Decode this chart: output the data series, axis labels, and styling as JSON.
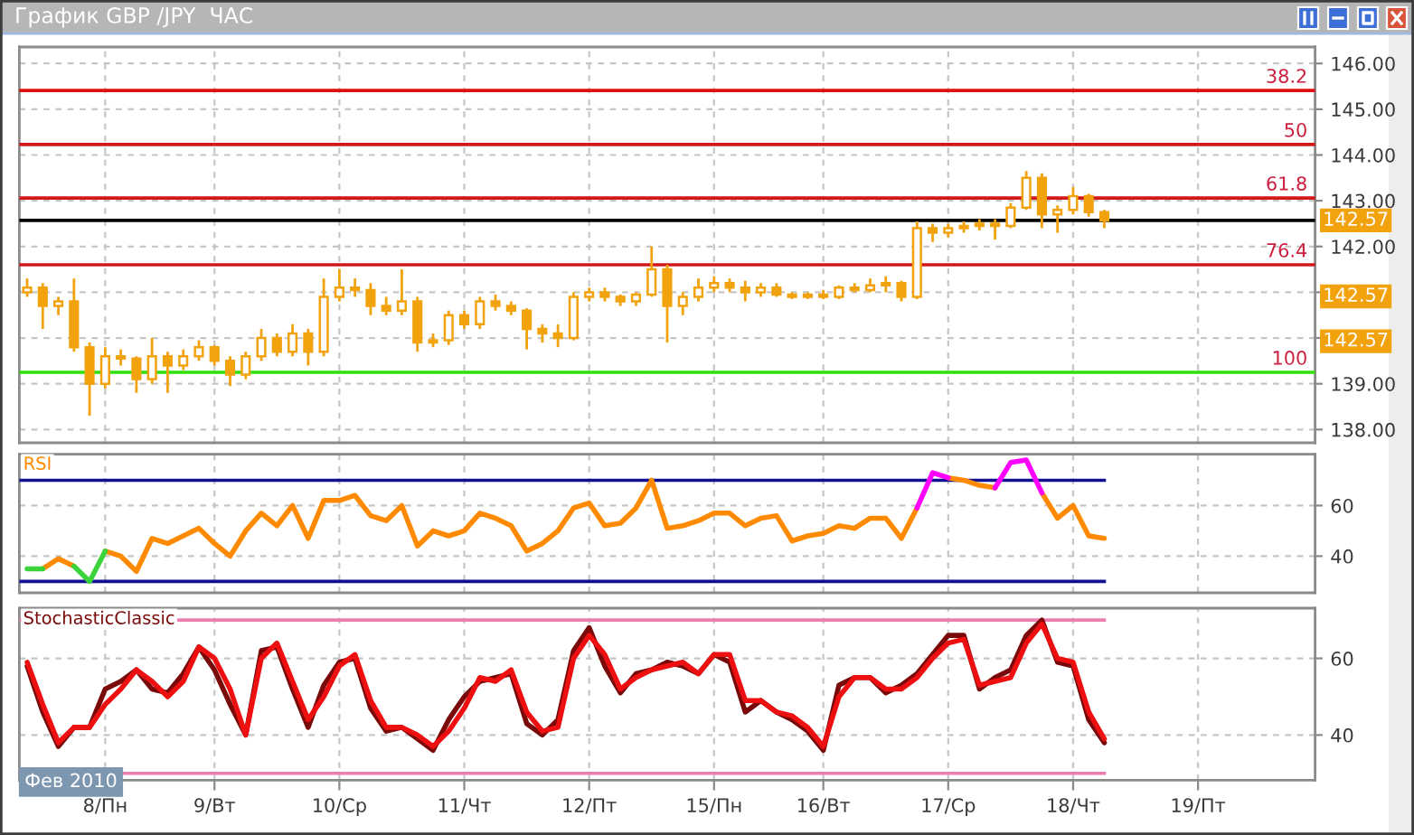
{
  "chart_data": [
    {
      "type": "candlestick",
      "title": "График GBP /JPY  ЧАС",
      "color": "#f2a20c",
      "categories": [
        null,
        null,
        null,
        null,
        null,
        null,
        null,
        null,
        null,
        null,
        null,
        null,
        null,
        null,
        null,
        null,
        null,
        null,
        null,
        null,
        null,
        null,
        null,
        null,
        null,
        null,
        null,
        null,
        null,
        null,
        null,
        null,
        null,
        null,
        null,
        null,
        null,
        null,
        null,
        null,
        null,
        null,
        null,
        null,
        null,
        null,
        null,
        null,
        null,
        null,
        null,
        null,
        null,
        null,
        null,
        null,
        null,
        null,
        null,
        null,
        null,
        null,
        null,
        null,
        null,
        null,
        null,
        null,
        null,
        null,
        null,
        null,
        null,
        null,
        null,
        null,
        null,
        null,
        null,
        null,
        null,
        null,
        null
      ],
      "ohlc": [
        [
          141.0,
          141.3,
          140.9,
          141.1
        ],
        [
          141.1,
          141.2,
          140.2,
          140.7
        ],
        [
          140.7,
          140.9,
          140.5,
          140.8
        ],
        [
          140.8,
          141.3,
          139.7,
          139.8
        ],
        [
          139.8,
          139.9,
          138.3,
          139.0
        ],
        [
          139.0,
          139.8,
          138.9,
          139.6
        ],
        [
          139.6,
          139.75,
          139.4,
          139.55
        ],
        [
          139.55,
          139.6,
          138.8,
          139.1
        ],
        [
          139.1,
          140.0,
          139.0,
          139.6
        ],
        [
          139.6,
          139.7,
          138.8,
          139.4
        ],
        [
          139.4,
          139.75,
          139.3,
          139.6
        ],
        [
          139.6,
          139.95,
          139.5,
          139.8
        ],
        [
          139.8,
          139.85,
          139.4,
          139.5
        ],
        [
          139.5,
          139.6,
          138.95,
          139.2
        ],
        [
          139.2,
          139.7,
          139.1,
          139.6
        ],
        [
          139.6,
          140.2,
          139.5,
          140.0
        ],
        [
          140.0,
          140.1,
          139.6,
          139.7
        ],
        [
          139.7,
          140.3,
          139.6,
          140.1
        ],
        [
          140.1,
          140.2,
          139.4,
          139.7
        ],
        [
          139.7,
          141.3,
          139.6,
          140.9
        ],
        [
          140.9,
          141.5,
          140.8,
          141.1
        ],
        [
          141.1,
          141.3,
          140.9,
          141.05
        ],
        [
          141.05,
          141.2,
          140.5,
          140.7
        ],
        [
          140.7,
          140.9,
          140.5,
          140.6
        ],
        [
          140.6,
          141.5,
          140.5,
          140.8
        ],
        [
          140.8,
          140.9,
          139.7,
          139.9
        ],
        [
          139.9,
          140.1,
          139.8,
          139.95
        ],
        [
          139.95,
          140.6,
          139.85,
          140.5
        ],
        [
          140.5,
          140.6,
          140.2,
          140.3
        ],
        [
          140.3,
          140.9,
          140.2,
          140.8
        ],
        [
          140.8,
          140.95,
          140.6,
          140.7
        ],
        [
          140.7,
          140.8,
          140.5,
          140.6
        ],
        [
          140.6,
          140.65,
          139.75,
          140.2
        ],
        [
          140.2,
          140.3,
          139.9,
          140.1
        ],
        [
          140.1,
          140.3,
          139.8,
          140.0
        ],
        [
          140.0,
          141.0,
          139.95,
          140.9
        ],
        [
          140.9,
          141.1,
          140.8,
          141.0
        ],
        [
          141.0,
          141.1,
          140.8,
          140.9
        ],
        [
          140.9,
          140.95,
          140.7,
          140.8
        ],
        [
          140.8,
          141.0,
          140.7,
          140.95
        ],
        [
          140.95,
          142.0,
          140.9,
          141.5
        ],
        [
          141.5,
          141.6,
          139.9,
          140.7
        ],
        [
          140.7,
          141.0,
          140.5,
          140.9
        ],
        [
          140.9,
          141.3,
          140.8,
          141.1
        ],
        [
          141.1,
          141.35,
          141.0,
          141.2
        ],
        [
          141.2,
          141.3,
          141.0,
          141.1
        ],
        [
          141.1,
          141.25,
          140.8,
          141.0
        ],
        [
          141.0,
          141.2,
          140.9,
          141.1
        ],
        [
          141.1,
          141.2,
          140.9,
          140.95
        ],
        [
          140.95,
          141.0,
          140.85,
          140.9
        ],
        [
          140.9,
          141.0,
          140.85,
          140.95
        ],
        [
          140.95,
          141.05,
          140.85,
          140.9
        ],
        [
          140.9,
          141.15,
          140.85,
          141.1
        ],
        [
          141.1,
          141.2,
          141.0,
          141.05
        ],
        [
          141.05,
          141.3,
          141.0,
          141.15
        ],
        [
          141.15,
          141.35,
          141.0,
          141.2
        ],
        [
          141.2,
          141.25,
          140.8,
          140.9
        ],
        [
          140.9,
          142.55,
          140.85,
          142.4
        ],
        [
          142.4,
          142.5,
          142.1,
          142.3
        ],
        [
          142.3,
          142.5,
          142.2,
          142.4
        ],
        [
          142.4,
          142.55,
          142.3,
          142.45
        ],
        [
          142.45,
          142.6,
          142.35,
          142.5
        ],
        [
          142.5,
          142.6,
          142.15,
          142.45
        ],
        [
          142.45,
          142.95,
          142.4,
          142.85
        ],
        [
          142.85,
          143.65,
          142.8,
          143.5
        ],
        [
          143.5,
          143.6,
          142.4,
          142.7
        ],
        [
          142.7,
          142.9,
          142.3,
          142.8
        ],
        [
          142.8,
          143.3,
          142.7,
          143.1
        ],
        [
          143.1,
          143.15,
          142.65,
          142.75
        ],
        [
          142.75,
          142.8,
          142.4,
          142.57
        ],
        null,
        null,
        null,
        null,
        null,
        null,
        null,
        null,
        null,
        null,
        null,
        null,
        null
      ],
      "ylim": [
        137.71,
        146.36
      ],
      "yticks": [
        {
          "value": 138,
          "label": "138.00"
        },
        {
          "value": 139,
          "label": "139.00"
        },
        {
          "value": 140,
          "label": null
        },
        {
          "value": 141,
          "label": null
        },
        {
          "value": 142,
          "label": "142.00"
        },
        {
          "value": 143,
          "label": "143.00"
        },
        {
          "value": 144,
          "label": "144.00"
        },
        {
          "value": 145,
          "label": "145.00"
        },
        {
          "value": 146,
          "label": "146.00"
        }
      ],
      "tick_labels": "y",
      "grid": true,
      "ref_lines": [
        {
          "axis": "y",
          "value": 145.41,
          "color": "#e01010"
        },
        {
          "axis": "y",
          "value": 144.23,
          "color": "#d01818"
        },
        {
          "axis": "y",
          "value": 143.06,
          "color": "#d01818"
        },
        {
          "axis": "y",
          "value": 141.6,
          "color": "#d01818"
        },
        {
          "axis": "y",
          "value": 139.25,
          "color": "#2ee00a"
        },
        {
          "axis": "y",
          "value": 142.57,
          "label": "142.57",
          "color": "#000000"
        }
      ],
      "annotations": [
        {
          "text": "38.2",
          "y": 145.41
        },
        {
          "text": "50",
          "y": 144.23
        },
        {
          "text": "61.8",
          "y": 143.06
        },
        {
          "text": "76.4",
          "y": 141.6
        },
        {
          "text": "100",
          "y": 139.25
        },
        {
          "text": "142.57",
          "y": 140.91
        },
        {
          "text": "142.57",
          "y": 139.93
        }
      ]
    },
    {
      "type": "line",
      "title": "RSI",
      "categories": [
        null,
        null,
        null,
        null,
        null,
        null,
        null,
        null,
        null,
        null,
        null,
        null,
        null,
        null,
        null,
        null,
        null,
        null,
        null,
        null,
        null,
        null,
        null,
        null,
        null,
        null,
        null,
        null,
        null,
        null,
        null,
        null,
        null,
        null,
        null,
        null,
        null,
        null,
        null,
        null,
        null,
        null,
        null,
        null,
        null,
        null,
        null,
        null,
        null,
        null,
        null,
        null,
        null,
        null,
        null,
        null,
        null,
        null,
        null,
        null,
        null,
        null,
        null,
        null,
        null,
        null,
        null,
        null,
        null,
        null,
        null,
        null,
        null,
        null,
        null,
        null,
        null,
        null,
        null,
        null,
        null,
        null,
        null
      ],
      "series": [
        {
          "color": "#ff8a00",
          "values": [
            null,
            35,
            39,
            36,
            null,
            42,
            40,
            34,
            47,
            45,
            48,
            51,
            45,
            40,
            50,
            57,
            52,
            60,
            47,
            62,
            62,
            64,
            56,
            54,
            60,
            44,
            50,
            48,
            50,
            57,
            55,
            52,
            42,
            45,
            50,
            59,
            61,
            52,
            53,
            59,
            70,
            51,
            52,
            54,
            57,
            57,
            52,
            55,
            56,
            46,
            48,
            49,
            52,
            51,
            55,
            55,
            47,
            59,
            null,
            71,
            70,
            68,
            67,
            null,
            null,
            65,
            55,
            60,
            48,
            47,
            null,
            null,
            null,
            null,
            null,
            null,
            null,
            null,
            null,
            null,
            null,
            null,
            null
          ]
        },
        {
          "color": "#3ad43a",
          "values": [
            35,
            35,
            null,
            36,
            30,
            42,
            null,
            null,
            null,
            null,
            null,
            null,
            null,
            null,
            null,
            null,
            null,
            null,
            null,
            null,
            null,
            null,
            null,
            null,
            null,
            null,
            null,
            null,
            null,
            null,
            null,
            null,
            null,
            null,
            null,
            null,
            null,
            null,
            null,
            null,
            null,
            null,
            null,
            null,
            null,
            null,
            null,
            null,
            null,
            null,
            null,
            null,
            null,
            null,
            null,
            null,
            null,
            null,
            null,
            null,
            null,
            null,
            null,
            null,
            null,
            null,
            null,
            null,
            null,
            null,
            null,
            null,
            null,
            null,
            null,
            null,
            null,
            null,
            null,
            null,
            null,
            null,
            null
          ]
        },
        {
          "color": "#ff00ff",
          "values": [
            null,
            null,
            null,
            null,
            null,
            null,
            null,
            null,
            null,
            null,
            null,
            null,
            null,
            null,
            null,
            null,
            null,
            null,
            null,
            null,
            null,
            null,
            null,
            null,
            null,
            null,
            null,
            null,
            null,
            null,
            null,
            null,
            null,
            null,
            null,
            null,
            null,
            null,
            null,
            null,
            null,
            null,
            null,
            null,
            null,
            null,
            null,
            null,
            null,
            null,
            null,
            null,
            null,
            null,
            null,
            null,
            null,
            59,
            73,
            71,
            null,
            null,
            67,
            77,
            78,
            65,
            null,
            null,
            null,
            null,
            null,
            null,
            null,
            null,
            null,
            null,
            null,
            null,
            null,
            null,
            null,
            null,
            null
          ]
        }
      ],
      "ylim": [
        25.5,
        80.3
      ],
      "yticks": [
        40,
        60
      ],
      "tick_labels": "y",
      "grid": true,
      "ref_lines": [
        {
          "axis": "y",
          "value": 70,
          "color": "#101090"
        },
        {
          "axis": "y",
          "value": 30,
          "color": "#101090"
        }
      ]
    },
    {
      "type": "line",
      "title": "StochasticClassic",
      "categories": [
        null,
        null,
        null,
        null,
        null,
        "8/Пн",
        null,
        null,
        null,
        null,
        null,
        null,
        "9/Вт",
        null,
        null,
        null,
        null,
        null,
        null,
        null,
        "10/Ср",
        null,
        null,
        null,
        null,
        null,
        null,
        null,
        "11/Чт",
        null,
        null,
        null,
        null,
        null,
        null,
        null,
        "12/Пт",
        null,
        null,
        null,
        null,
        null,
        null,
        null,
        "15/Пн",
        null,
        null,
        null,
        null,
        null,
        null,
        "16/Вт",
        null,
        null,
        null,
        null,
        null,
        null,
        null,
        "17/Ср",
        null,
        null,
        null,
        null,
        null,
        null,
        null,
        "18/Чт",
        null,
        null,
        null,
        null,
        null,
        null,
        null,
        "19/Пт",
        null,
        null,
        null,
        null,
        null,
        null,
        null
      ],
      "series": [
        {
          "color": "#7a0a0a",
          "values": [
            58,
            46,
            37,
            42,
            42,
            52,
            54,
            57,
            52,
            51,
            56,
            63,
            57,
            48,
            40,
            62,
            63,
            52,
            42,
            53,
            59,
            60,
            47,
            41,
            42,
            39,
            36,
            44,
            50,
            54,
            55,
            56,
            43,
            40,
            44,
            62,
            68,
            58,
            51,
            56,
            57,
            59,
            58,
            56,
            61,
            59,
            46,
            49,
            46,
            44,
            41,
            36,
            53,
            55,
            55,
            51,
            53,
            56,
            61,
            66,
            66,
            52,
            55,
            57,
            66,
            70,
            59,
            58,
            44,
            38,
            null,
            null,
            null,
            null,
            null,
            null,
            null,
            null,
            null,
            null,
            null,
            null,
            null
          ]
        },
        {
          "color": "#ee1010",
          "values": [
            59,
            48,
            38,
            42,
            42,
            48,
            52,
            57,
            54,
            50,
            54,
            63,
            60,
            52,
            40,
            60,
            64,
            54,
            44,
            50,
            58,
            61,
            49,
            42,
            42,
            40,
            37,
            41,
            47,
            55,
            54,
            57,
            46,
            41,
            42,
            60,
            66,
            61,
            52,
            55,
            57,
            58,
            59,
            56,
            61,
            61,
            49,
            49,
            46,
            45,
            42,
            37,
            50,
            55,
            55,
            52,
            52,
            55,
            60,
            64,
            65,
            53,
            54,
            55,
            64,
            69,
            60,
            59,
            46,
            39,
            null,
            null,
            null,
            null,
            null,
            null,
            null,
            null,
            null,
            null,
            null,
            null,
            null
          ]
        }
      ],
      "ylim": [
        28.2,
        73.1
      ],
      "yticks": [
        40,
        60
      ],
      "grid": true,
      "ref_lines": [
        {
          "axis": "y",
          "value": 70,
          "color": "#ec7fb0"
        },
        {
          "axis": "y",
          "value": 30,
          "color": "#ec7fb0"
        }
      ],
      "annotations": [
        "Фев 2010"
      ]
    }
  ]
}
